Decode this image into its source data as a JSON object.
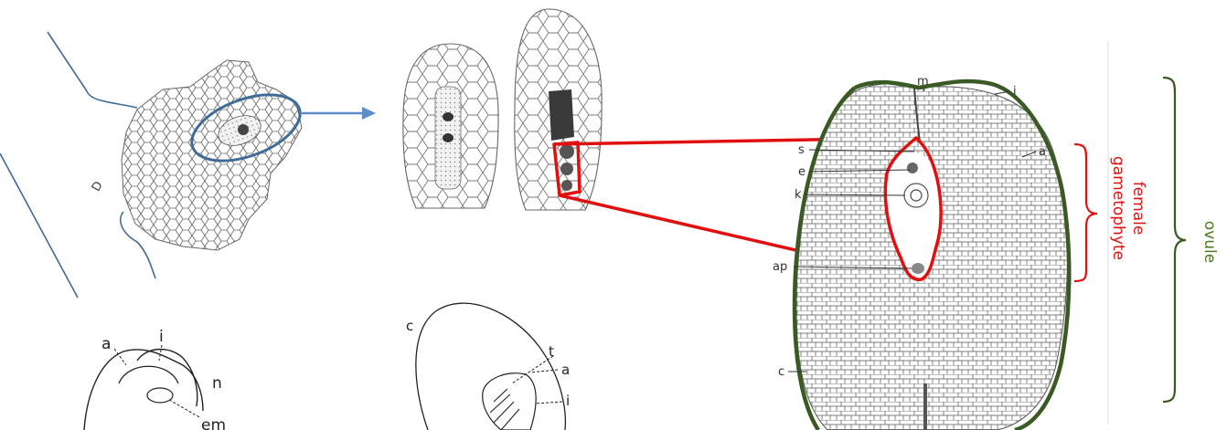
{
  "labels": {
    "a": "a",
    "i": "i",
    "n": "n",
    "em": "em",
    "c": "c",
    "t": "t",
    "d": "D",
    "m": "m",
    "s": "s",
    "e": "e",
    "k": "k",
    "ap": "ap"
  },
  "brackets": {
    "female_gametophyte_line1": "female",
    "female_gametophyte_line2": "gametophyte",
    "ovule": "ovule"
  },
  "colors": {
    "blue_outline": "#3f6b9a",
    "arrow": "#5b8ec9",
    "red_outline": "#e01010",
    "green_outline": "#3a5a24",
    "female_text": "#e01010",
    "ovule_text": "#4a7a1c",
    "ink": "#3a3a3a"
  }
}
